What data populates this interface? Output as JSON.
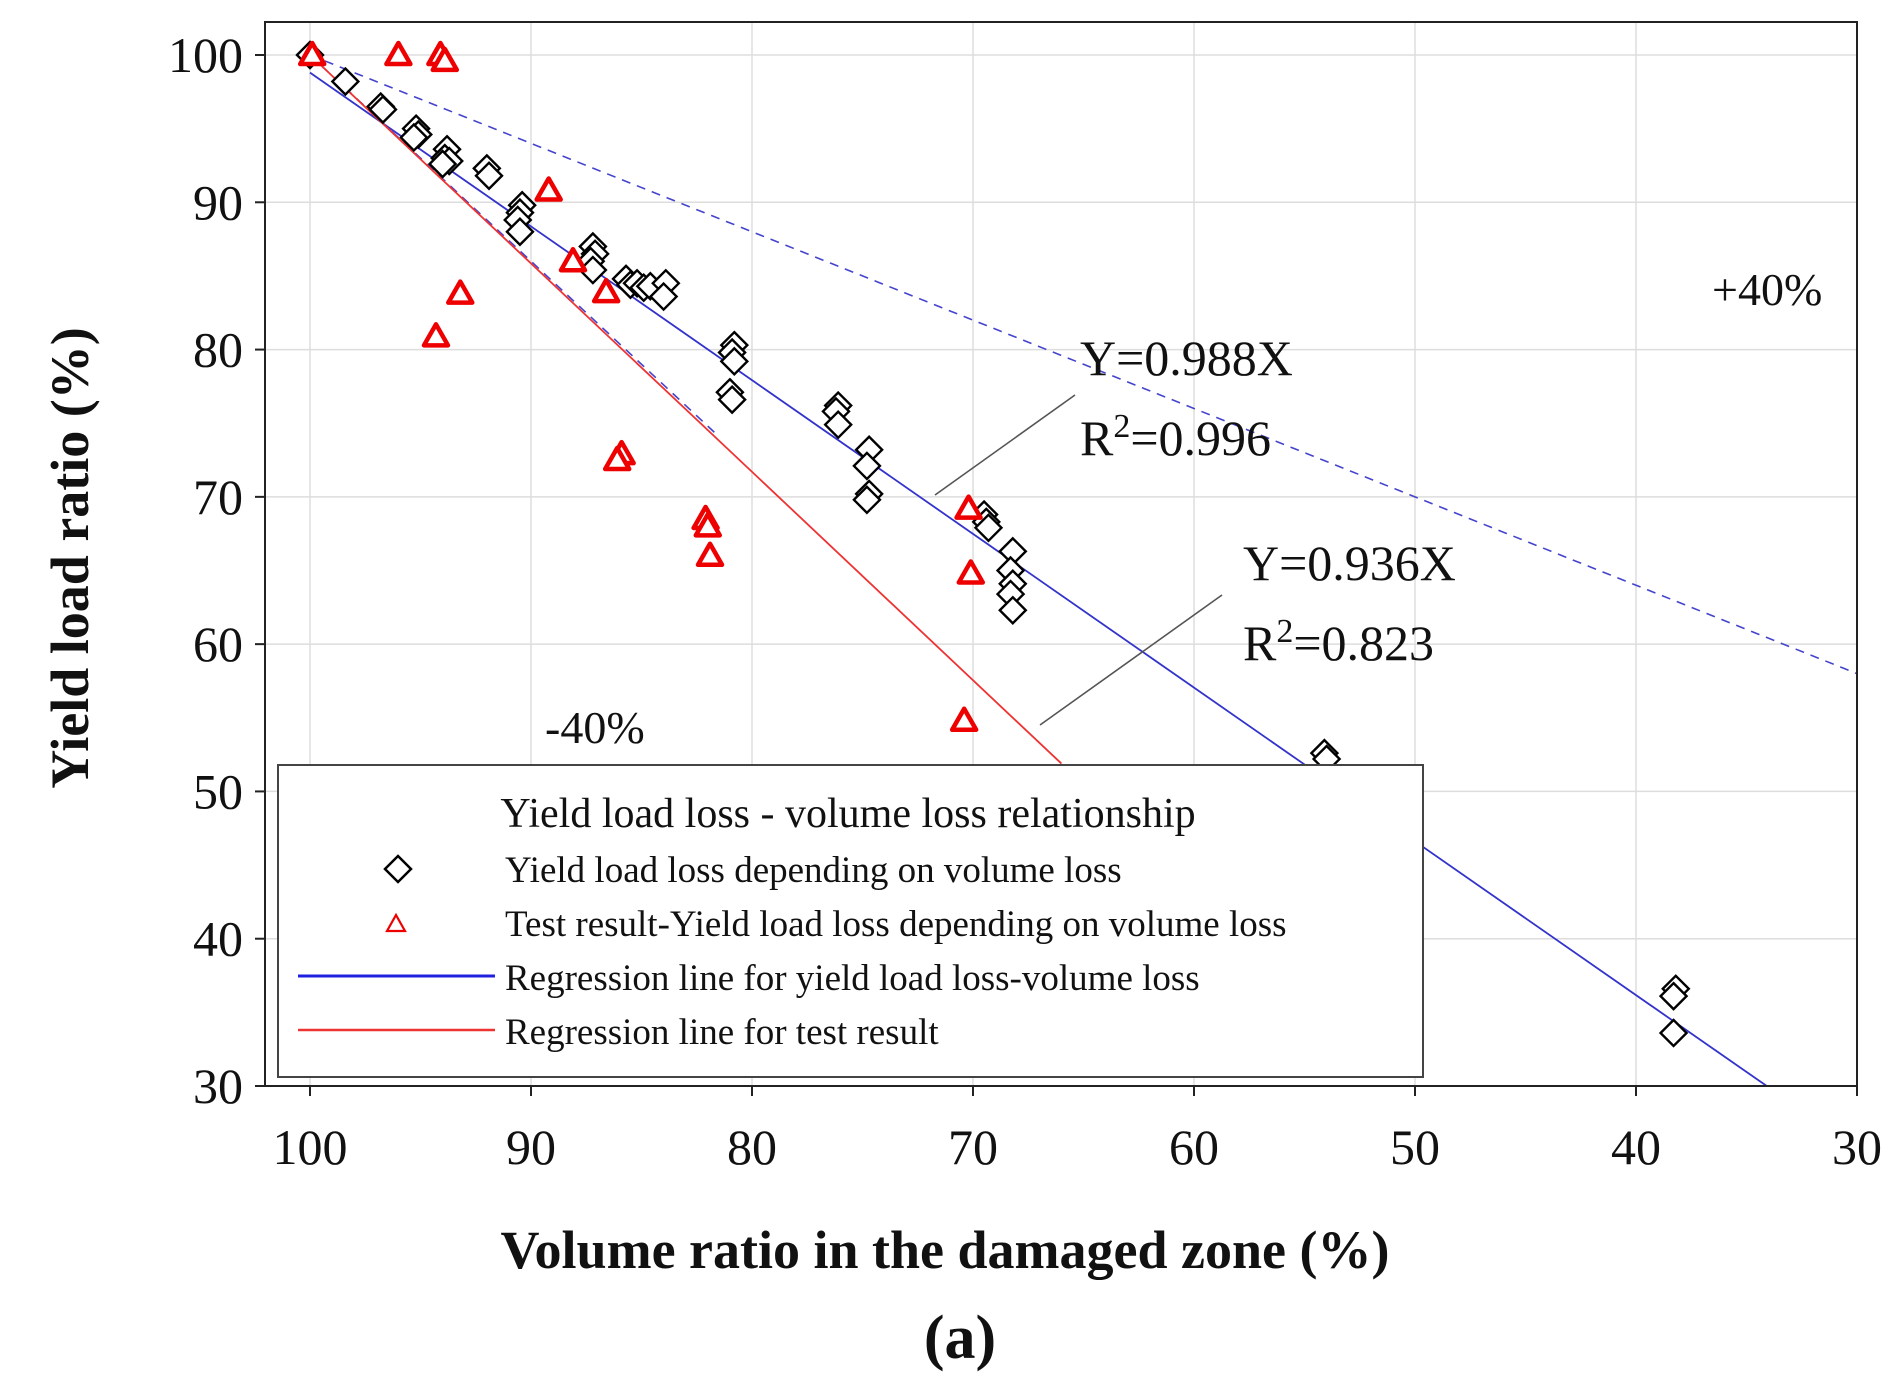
{
  "chart_data": {
    "type": "scatter",
    "title": "",
    "xlabel": "Volume ratio in the damaged zone (%)",
    "ylabel": "Yield load ratio (%)",
    "subfigure_label": "(a)",
    "xlim": [
      100,
      30
    ],
    "ylim": [
      30,
      100
    ],
    "x_ticks": [
      100,
      90,
      80,
      70,
      60,
      50,
      40,
      30
    ],
    "y_ticks": [
      100,
      90,
      80,
      70,
      60,
      50,
      40,
      30
    ],
    "grid": true,
    "colors": {
      "model": "#000000",
      "test": "#ee0000",
      "regression_model": "#3333cc",
      "regression_test": "#ee3333",
      "bound": "#4444cc",
      "grid": "#dddddd",
      "axis": "#222222"
    },
    "legend": {
      "title": "Yield load loss - volume loss relationship",
      "position": "bottom-left",
      "entries": [
        {
          "label": "Yield load loss depending on volume loss",
          "marker": "diamond"
        },
        {
          "label": "Test result-Yield load loss depending on volume loss",
          "marker": "triangle"
        },
        {
          "label": "Regression line for yield load loss-volume loss",
          "marker": "line-blue"
        },
        {
          "label": "Regression line for test result",
          "marker": "line-red"
        }
      ]
    },
    "annotations": {
      "plus_bound": "+40%",
      "minus_bound": "-40%",
      "model_equation": "Y=0.988X",
      "model_r2_prefix": "R",
      "model_r2_sup": "2",
      "model_r2_value": "=0.996",
      "test_equation": "Y=0.936X",
      "test_r2_prefix": "R",
      "test_r2_sup": "2",
      "test_r2_value": "=0.823"
    },
    "regression": {
      "model_slope": 0.988,
      "model_r2": 0.996,
      "test_slope": 0.936,
      "test_r2": 0.823
    },
    "bounds": {
      "plus_slope": 1.4,
      "minus_slope": 0.6,
      "anchor": [
        100,
        100
      ]
    },
    "series": [
      {
        "name": "Yield load loss depending on volume loss",
        "marker": "diamond",
        "points": [
          [
            100,
            100
          ],
          [
            98.4,
            98.2
          ],
          [
            96.8,
            96.5
          ],
          [
            96.7,
            96.3
          ],
          [
            95.2,
            95
          ],
          [
            95.1,
            94.6
          ],
          [
            95.3,
            94.4
          ],
          [
            93.8,
            93.6
          ],
          [
            93.9,
            93
          ],
          [
            93.7,
            92.8
          ],
          [
            94,
            92.6
          ],
          [
            92,
            92.3
          ],
          [
            91.9,
            91.8
          ],
          [
            90.4,
            89.8
          ],
          [
            90.5,
            89.3
          ],
          [
            90.6,
            88.8
          ],
          [
            90.5,
            88
          ],
          [
            87.2,
            87
          ],
          [
            87.1,
            86.5
          ],
          [
            87.3,
            86
          ],
          [
            87.2,
            85.4
          ],
          [
            85.7,
            84.8
          ],
          [
            85.5,
            84.4
          ],
          [
            85.2,
            84.5
          ],
          [
            84.9,
            84.2
          ],
          [
            84.6,
            84.3
          ],
          [
            83.9,
            84.5
          ],
          [
            84,
            83.6
          ],
          [
            80.8,
            80.3
          ],
          [
            80.9,
            79.8
          ],
          [
            80.8,
            79.2
          ],
          [
            81,
            77.1
          ],
          [
            80.9,
            76.6
          ],
          [
            76.1,
            76.2
          ],
          [
            76.2,
            75.8
          ],
          [
            76.1,
            74.9
          ],
          [
            74.7,
            73.2
          ],
          [
            74.8,
            72.1
          ],
          [
            74.7,
            70.2
          ],
          [
            74.8,
            69.8
          ],
          [
            69.5,
            68.8
          ],
          [
            69.4,
            68.3
          ],
          [
            69.3,
            67.9
          ],
          [
            68.2,
            66.3
          ],
          [
            68.3,
            65
          ],
          [
            68.2,
            64.1
          ],
          [
            68.3,
            63.4
          ],
          [
            68.2,
            62.3
          ],
          [
            54.1,
            52.6
          ],
          [
            54,
            52.2
          ],
          [
            38.2,
            36.6
          ],
          [
            38.3,
            36.1
          ],
          [
            38.3,
            33.6
          ]
        ]
      },
      {
        "name": "Test result-Yield load loss depending on volume loss",
        "marker": "triangle",
        "points": [
          [
            99.9,
            100
          ],
          [
            96,
            100
          ],
          [
            94.1,
            100
          ],
          [
            93.9,
            99.6
          ],
          [
            89.2,
            90.8
          ],
          [
            88.1,
            86
          ],
          [
            86.6,
            83.9
          ],
          [
            93.2,
            83.8
          ],
          [
            94.3,
            80.9
          ],
          [
            85.9,
            72.9
          ],
          [
            86.1,
            72.5
          ],
          [
            82.1,
            68.5
          ],
          [
            82,
            68
          ],
          [
            81.9,
            66
          ],
          [
            70.2,
            69.2
          ],
          [
            70.1,
            64.8
          ],
          [
            70.4,
            54.8
          ]
        ]
      }
    ]
  }
}
